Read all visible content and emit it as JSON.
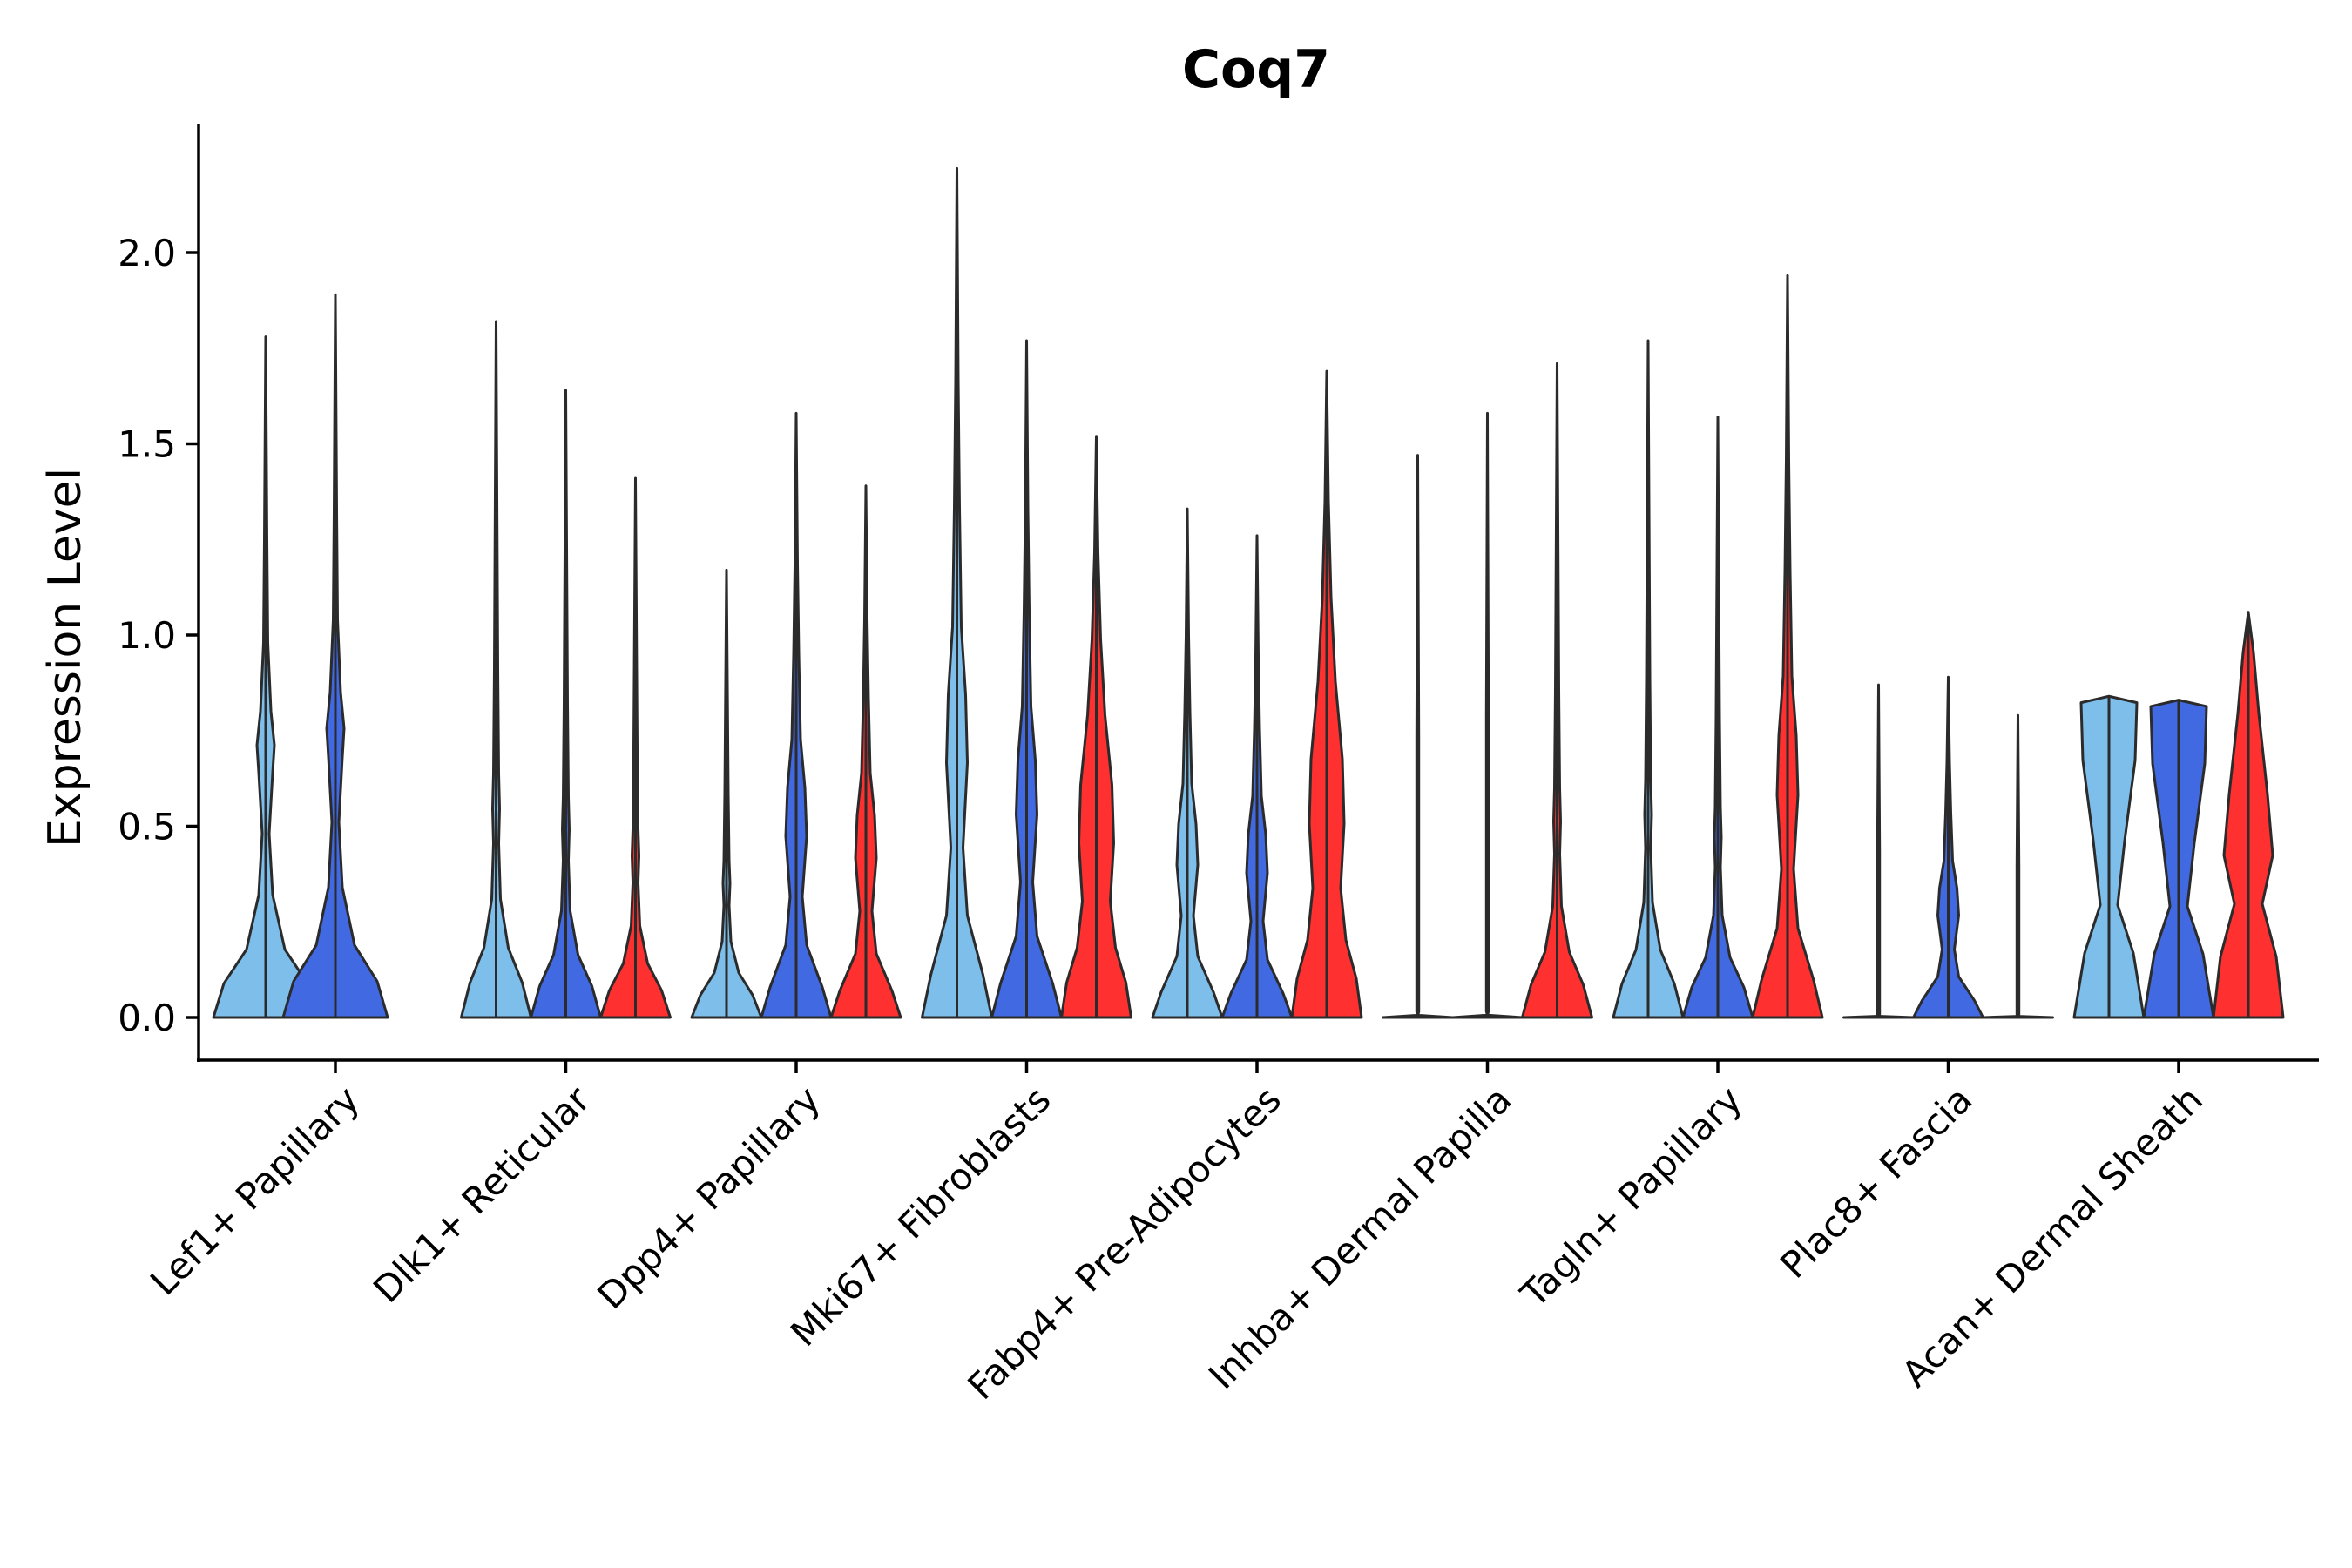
{
  "chart_data": {
    "type": "violin",
    "title": "Coq7",
    "xlabel": "",
    "ylabel": "Expression Level",
    "ylim": [
      -0.11,
      2.34
    ],
    "yticks": [
      0.0,
      0.5,
      1.0,
      1.5,
      2.0
    ],
    "ytick_labels": [
      "0.0",
      "0.5",
      "1.0",
      "1.5",
      "2.0"
    ],
    "categories": [
      "Lef1+ Papillary",
      "Dlk1+ Reticular",
      "Dpp4+ Papillary",
      "Mki67+ Fibroblasts",
      "Fabp4+ Pre-Adipocytes",
      "Inhba+ Dermal Papilla",
      "Tagln+ Papillary",
      "Plac8+ Fascia",
      "Acan+ Dermal Sheath"
    ],
    "series_colors": [
      "#7dbfea",
      "#4169e1",
      "#fe3030"
    ],
    "violins": [
      {
        "category": "Lef1+ Papillary",
        "series": 0,
        "max": 1.78,
        "shape": "mode_high"
      },
      {
        "category": "Lef1+ Papillary",
        "series": 1,
        "max": 1.89,
        "shape": "mode_high"
      },
      {
        "category": "Dlk1+ Reticular",
        "series": 0,
        "max": 1.82,
        "shape": "bottom"
      },
      {
        "category": "Dlk1+ Reticular",
        "series": 1,
        "max": 1.64,
        "shape": "bottom"
      },
      {
        "category": "Dlk1+ Reticular",
        "series": 2,
        "max": 1.41,
        "shape": "bottom"
      },
      {
        "category": "Dpp4+ Papillary",
        "series": 0,
        "max": 1.17,
        "shape": "bottom"
      },
      {
        "category": "Dpp4+ Papillary",
        "series": 1,
        "max": 1.58,
        "shape": "bimodal"
      },
      {
        "category": "Dpp4+ Papillary",
        "series": 2,
        "max": 1.39,
        "shape": "bimodal"
      },
      {
        "category": "Mki67+ Fibroblasts",
        "series": 0,
        "max": 2.22,
        "shape": "bimodal"
      },
      {
        "category": "Mki67+ Fibroblasts",
        "series": 1,
        "max": 1.77,
        "shape": "bimodal"
      },
      {
        "category": "Mki67+ Fibroblasts",
        "series": 2,
        "max": 1.52,
        "shape": "wide"
      },
      {
        "category": "Fabp4+ Pre-Adipocytes",
        "series": 0,
        "max": 1.33,
        "shape": "bimodal"
      },
      {
        "category": "Fabp4+ Pre-Adipocytes",
        "series": 1,
        "max": 1.26,
        "shape": "bimodal"
      },
      {
        "category": "Fabp4+ Pre-Adipocytes",
        "series": 2,
        "max": 1.69,
        "shape": "wide"
      },
      {
        "category": "Inhba+ Dermal Papilla",
        "series": 0,
        "max": 1.47,
        "shape": "flat"
      },
      {
        "category": "Inhba+ Dermal Papilla",
        "series": 1,
        "max": 1.58,
        "shape": "flat"
      },
      {
        "category": "Inhba+ Dermal Papilla",
        "series": 2,
        "max": 1.71,
        "shape": "bottom"
      },
      {
        "category": "Tagln+ Papillary",
        "series": 0,
        "max": 1.77,
        "shape": "bottom"
      },
      {
        "category": "Tagln+ Papillary",
        "series": 1,
        "max": 1.57,
        "shape": "bottom"
      },
      {
        "category": "Tagln+ Papillary",
        "series": 2,
        "max": 1.94,
        "shape": "bimodal"
      },
      {
        "category": "Plac8+ Fascia",
        "series": 0,
        "max": 0.87,
        "shape": "flat"
      },
      {
        "category": "Plac8+ Fascia",
        "series": 1,
        "max": 0.89,
        "shape": "bimodal"
      },
      {
        "category": "Plac8+ Fascia",
        "series": 2,
        "max": 0.79,
        "shape": "flat"
      },
      {
        "category": "Acan+ Dermal Sheath",
        "series": 0,
        "max": 0.84,
        "shape": "block"
      },
      {
        "category": "Acan+ Dermal Sheath",
        "series": 1,
        "max": 0.83,
        "shape": "block"
      },
      {
        "category": "Acan+ Dermal Sheath",
        "series": 2,
        "max": 1.06,
        "shape": "block_red"
      }
    ]
  }
}
